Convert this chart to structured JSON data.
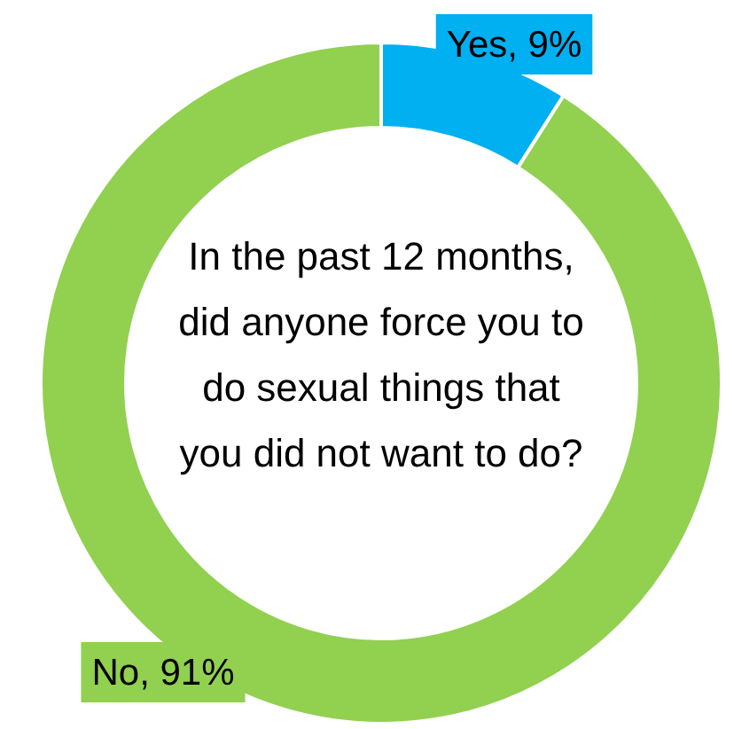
{
  "chart_data": {
    "type": "donut",
    "title": "In the past 12 months, did anyone force you to do sexual things that you did not want to do?",
    "categories": [
      "Yes",
      "No"
    ],
    "values": [
      9,
      91
    ],
    "colors": [
      "#00b0f0",
      "#92d050"
    ],
    "value_labels": [
      "9%",
      "91%"
    ],
    "legend": false
  }
}
